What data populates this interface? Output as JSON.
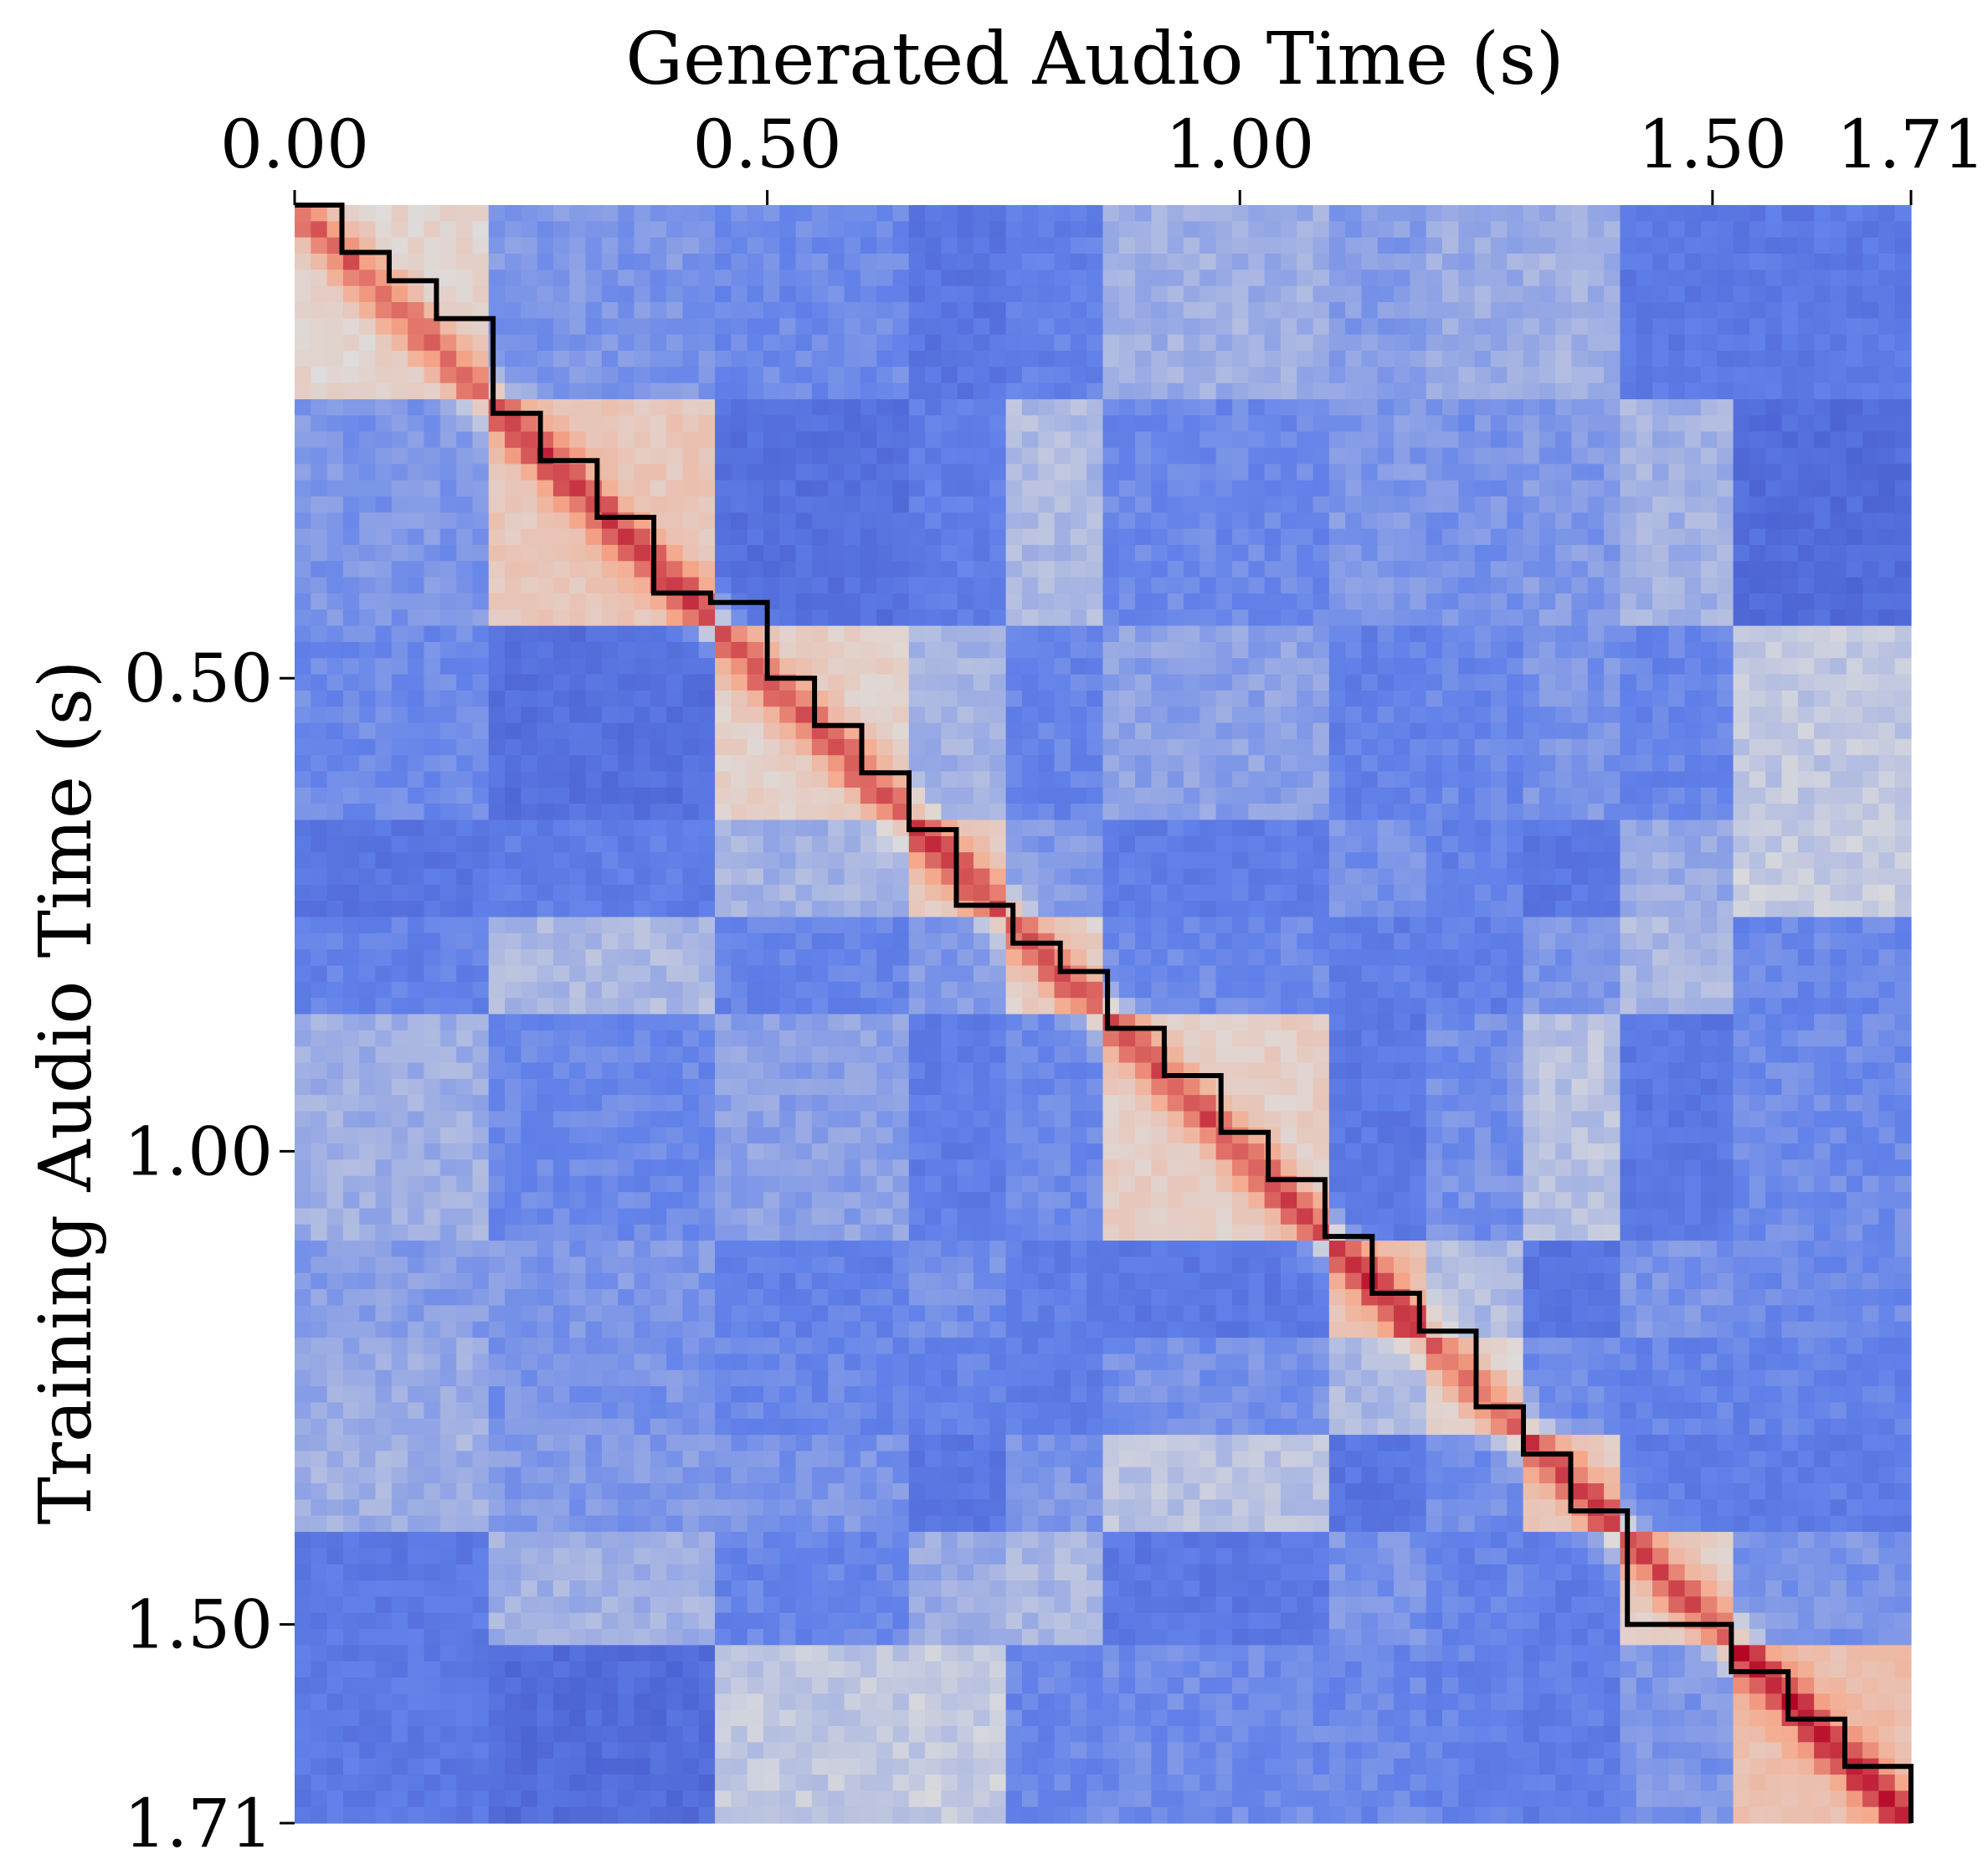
{
  "chart_data": {
    "type": "heatmap",
    "xlabel": "Generated Audio Time (s)",
    "ylabel": "Training Audio Time (s)",
    "xlim": [
      0,
      1.71
    ],
    "ylim": [
      0,
      1.71
    ],
    "x_ticks": [
      "0.00",
      "0.50",
      "1.00",
      "1.50",
      "1.71"
    ],
    "y_ticks": [
      "0.50",
      "1.00",
      "1.50",
      "1.71"
    ],
    "x_tick_values": [
      0,
      0.5,
      1.0,
      1.5,
      1.71
    ],
    "y_tick_values": [
      0.5,
      1.0,
      1.5,
      1.71
    ],
    "x_axis_position": "top",
    "colormap": "coolwarm",
    "colors": {
      "low": "#3b4cc0",
      "mid": "#dddcdc",
      "high": "#f49a7b",
      "path": "#000000"
    },
    "segment_boundaries_s": [
      0.21,
      0.44,
      0.65,
      0.76,
      0.86,
      1.09,
      1.19,
      1.3,
      1.41,
      1.52
    ],
    "alignment_path": [
      [
        0.0,
        0.0
      ],
      [
        0.05,
        0.05
      ],
      [
        0.1,
        0.08
      ],
      [
        0.15,
        0.12
      ],
      [
        0.21,
        0.22
      ],
      [
        0.26,
        0.27
      ],
      [
        0.32,
        0.33
      ],
      [
        0.38,
        0.41
      ],
      [
        0.44,
        0.42
      ],
      [
        0.5,
        0.5
      ],
      [
        0.55,
        0.55
      ],
      [
        0.6,
        0.6
      ],
      [
        0.65,
        0.66
      ],
      [
        0.7,
        0.74
      ],
      [
        0.76,
        0.78
      ],
      [
        0.81,
        0.81
      ],
      [
        0.86,
        0.87
      ],
      [
        0.92,
        0.92
      ],
      [
        0.98,
        0.98
      ],
      [
        1.03,
        1.03
      ],
      [
        1.09,
        1.09
      ],
      [
        1.14,
        1.15
      ],
      [
        1.19,
        1.19
      ],
      [
        1.25,
        1.27
      ],
      [
        1.3,
        1.32
      ],
      [
        1.35,
        1.38
      ],
      [
        1.41,
        1.5
      ],
      [
        1.47,
        1.5
      ],
      [
        1.52,
        1.55
      ],
      [
        1.58,
        1.6
      ],
      [
        1.64,
        1.65
      ],
      [
        1.71,
        1.71
      ]
    ]
  }
}
